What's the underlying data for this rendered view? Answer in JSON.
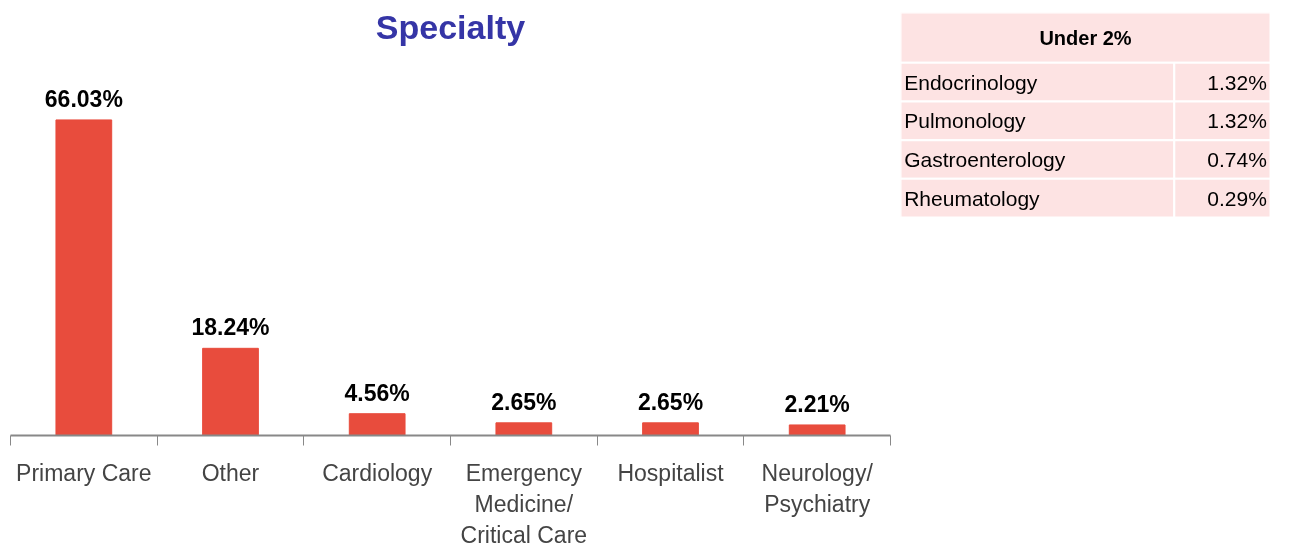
{
  "chart_data": [
    {
      "type": "bar",
      "title": "Specialty",
      "categories": [
        "Primary Care",
        "Other",
        "Cardiology",
        "Emergency Medicine/ Critical Care",
        "Hospitalist",
        "Neurology/ Psychiatry"
      ],
      "values": [
        66.03,
        18.24,
        4.56,
        2.65,
        2.65,
        2.21
      ],
      "value_labels": [
        "66.03%",
        "18.24%",
        "4.56%",
        "2.65%",
        "2.65%",
        "2.21%"
      ],
      "color": "#e84c3d",
      "grid": false
    },
    {
      "type": "other",
      "title": "Under 2%",
      "categories": [
        "Endocrinology",
        "Pulmonology",
        "Gastroenterology",
        "Rheumatology"
      ],
      "value_labels": [
        "1.32%",
        "1.32%",
        "0.74%",
        "0.29%"
      ],
      "color": "#fde3e3"
    }
  ]
}
